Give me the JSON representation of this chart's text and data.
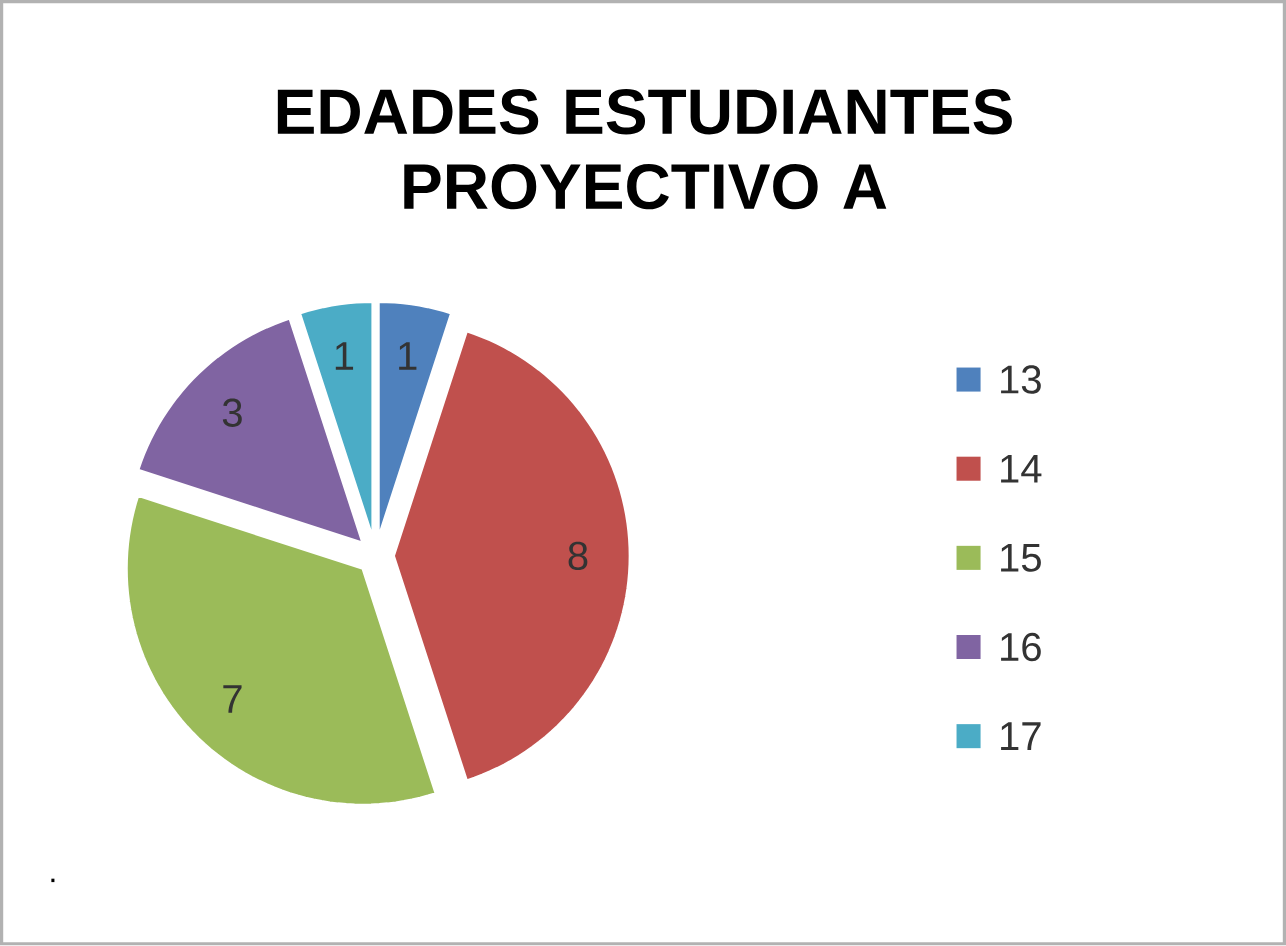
{
  "chart_data": {
    "type": "pie",
    "title": "EDADES ESTUDIANTES PROYECTIVO A",
    "categories": [
      "13",
      "14",
      "15",
      "16",
      "17"
    ],
    "values": [
      1,
      8,
      7,
      3,
      1
    ],
    "colors": [
      "#4f81bd",
      "#c0504d",
      "#9bbb59",
      "#8064a2",
      "#4bacc6"
    ],
    "data_labels": true,
    "legend": "right",
    "annotations": [
      "."
    ]
  }
}
